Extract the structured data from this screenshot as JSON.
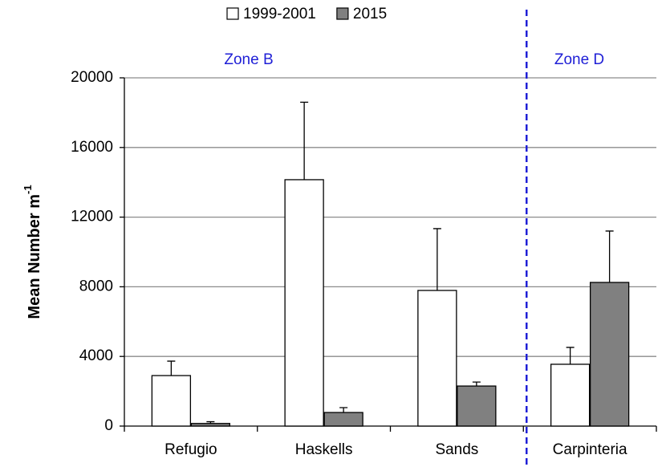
{
  "chart_data": {
    "type": "bar",
    "y_label": {
      "text": "Mean Number m",
      "superscript": "-1"
    },
    "categories": [
      "Refugio",
      "Haskells",
      "Sands",
      "Carpinteria"
    ],
    "series": [
      {
        "name": "1999-2001",
        "color": "#ffffff",
        "values": [
          2900,
          14150,
          7790,
          3550
        ],
        "errors": [
          830,
          4450,
          3550,
          970
        ]
      },
      {
        "name": "2015",
        "color": "#808080",
        "values": [
          150,
          780,
          2300,
          8250
        ],
        "errors": [
          100,
          280,
          230,
          2950
        ]
      }
    ],
    "zones": [
      {
        "label": "Zone B",
        "categories": [
          0,
          2
        ]
      },
      {
        "label": "Zone D",
        "categories": [
          3,
          3
        ]
      }
    ],
    "zone_color": "#1f1fd6",
    "ylim": [
      0,
      20000
    ],
    "yticks": [
      0,
      4000,
      8000,
      12000,
      16000,
      20000
    ],
    "grid": true,
    "legend": "top"
  }
}
